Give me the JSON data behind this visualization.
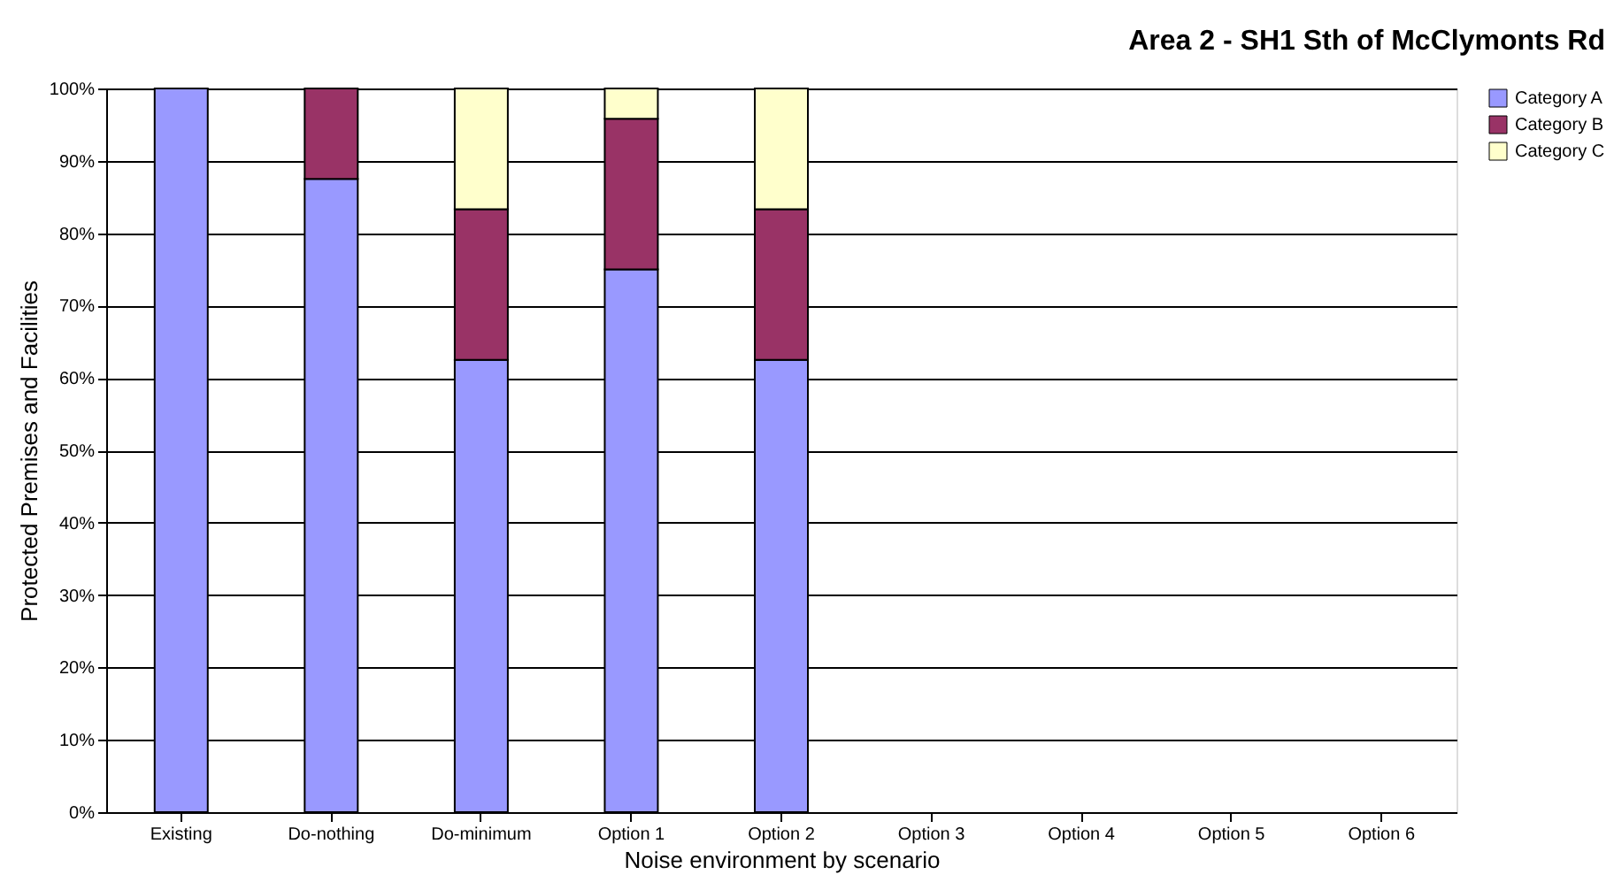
{
  "chart_data": {
    "type": "bar",
    "title": "Area 2 - SH1 Sth of McClymonts Rd",
    "xlabel": "Noise environment by scenario",
    "ylabel": "Protected Premises and Facilities",
    "categories": [
      "Existing",
      "Do-nothing",
      "Do-minimum",
      "Option 1",
      "Option 2",
      "Option 3",
      "Option 4",
      "Option 5",
      "Option 6"
    ],
    "stacked": true,
    "series": [
      {
        "name": "Category A",
        "color": "#9999ff",
        "values": [
          100,
          87.5,
          62.5,
          75,
          62.5,
          null,
          null,
          null,
          null
        ]
      },
      {
        "name": "Category B",
        "color": "#993366",
        "values": [
          null,
          12.5,
          20.8,
          20.8,
          20.8,
          null,
          null,
          null,
          null
        ]
      },
      {
        "name": "Category C",
        "color": "#ffffcc",
        "values": [
          null,
          null,
          16.7,
          4.2,
          16.7,
          null,
          null,
          null,
          null
        ]
      }
    ],
    "ylim": [
      0,
      100
    ],
    "yticks": [
      {
        "value": 0,
        "label": "0%"
      },
      {
        "value": 10,
        "label": "10%"
      },
      {
        "value": 20,
        "label": "20%"
      },
      {
        "value": 30,
        "label": "30%"
      },
      {
        "value": 40,
        "label": "40%"
      },
      {
        "value": 50,
        "label": "50%"
      },
      {
        "value": 60,
        "label": "60%"
      },
      {
        "value": 70,
        "label": "70%"
      },
      {
        "value": 80,
        "label": "80%"
      },
      {
        "value": 90,
        "label": "90%"
      },
      {
        "value": 100,
        "label": "100%"
      }
    ],
    "grid": "y",
    "legend": "right"
  }
}
